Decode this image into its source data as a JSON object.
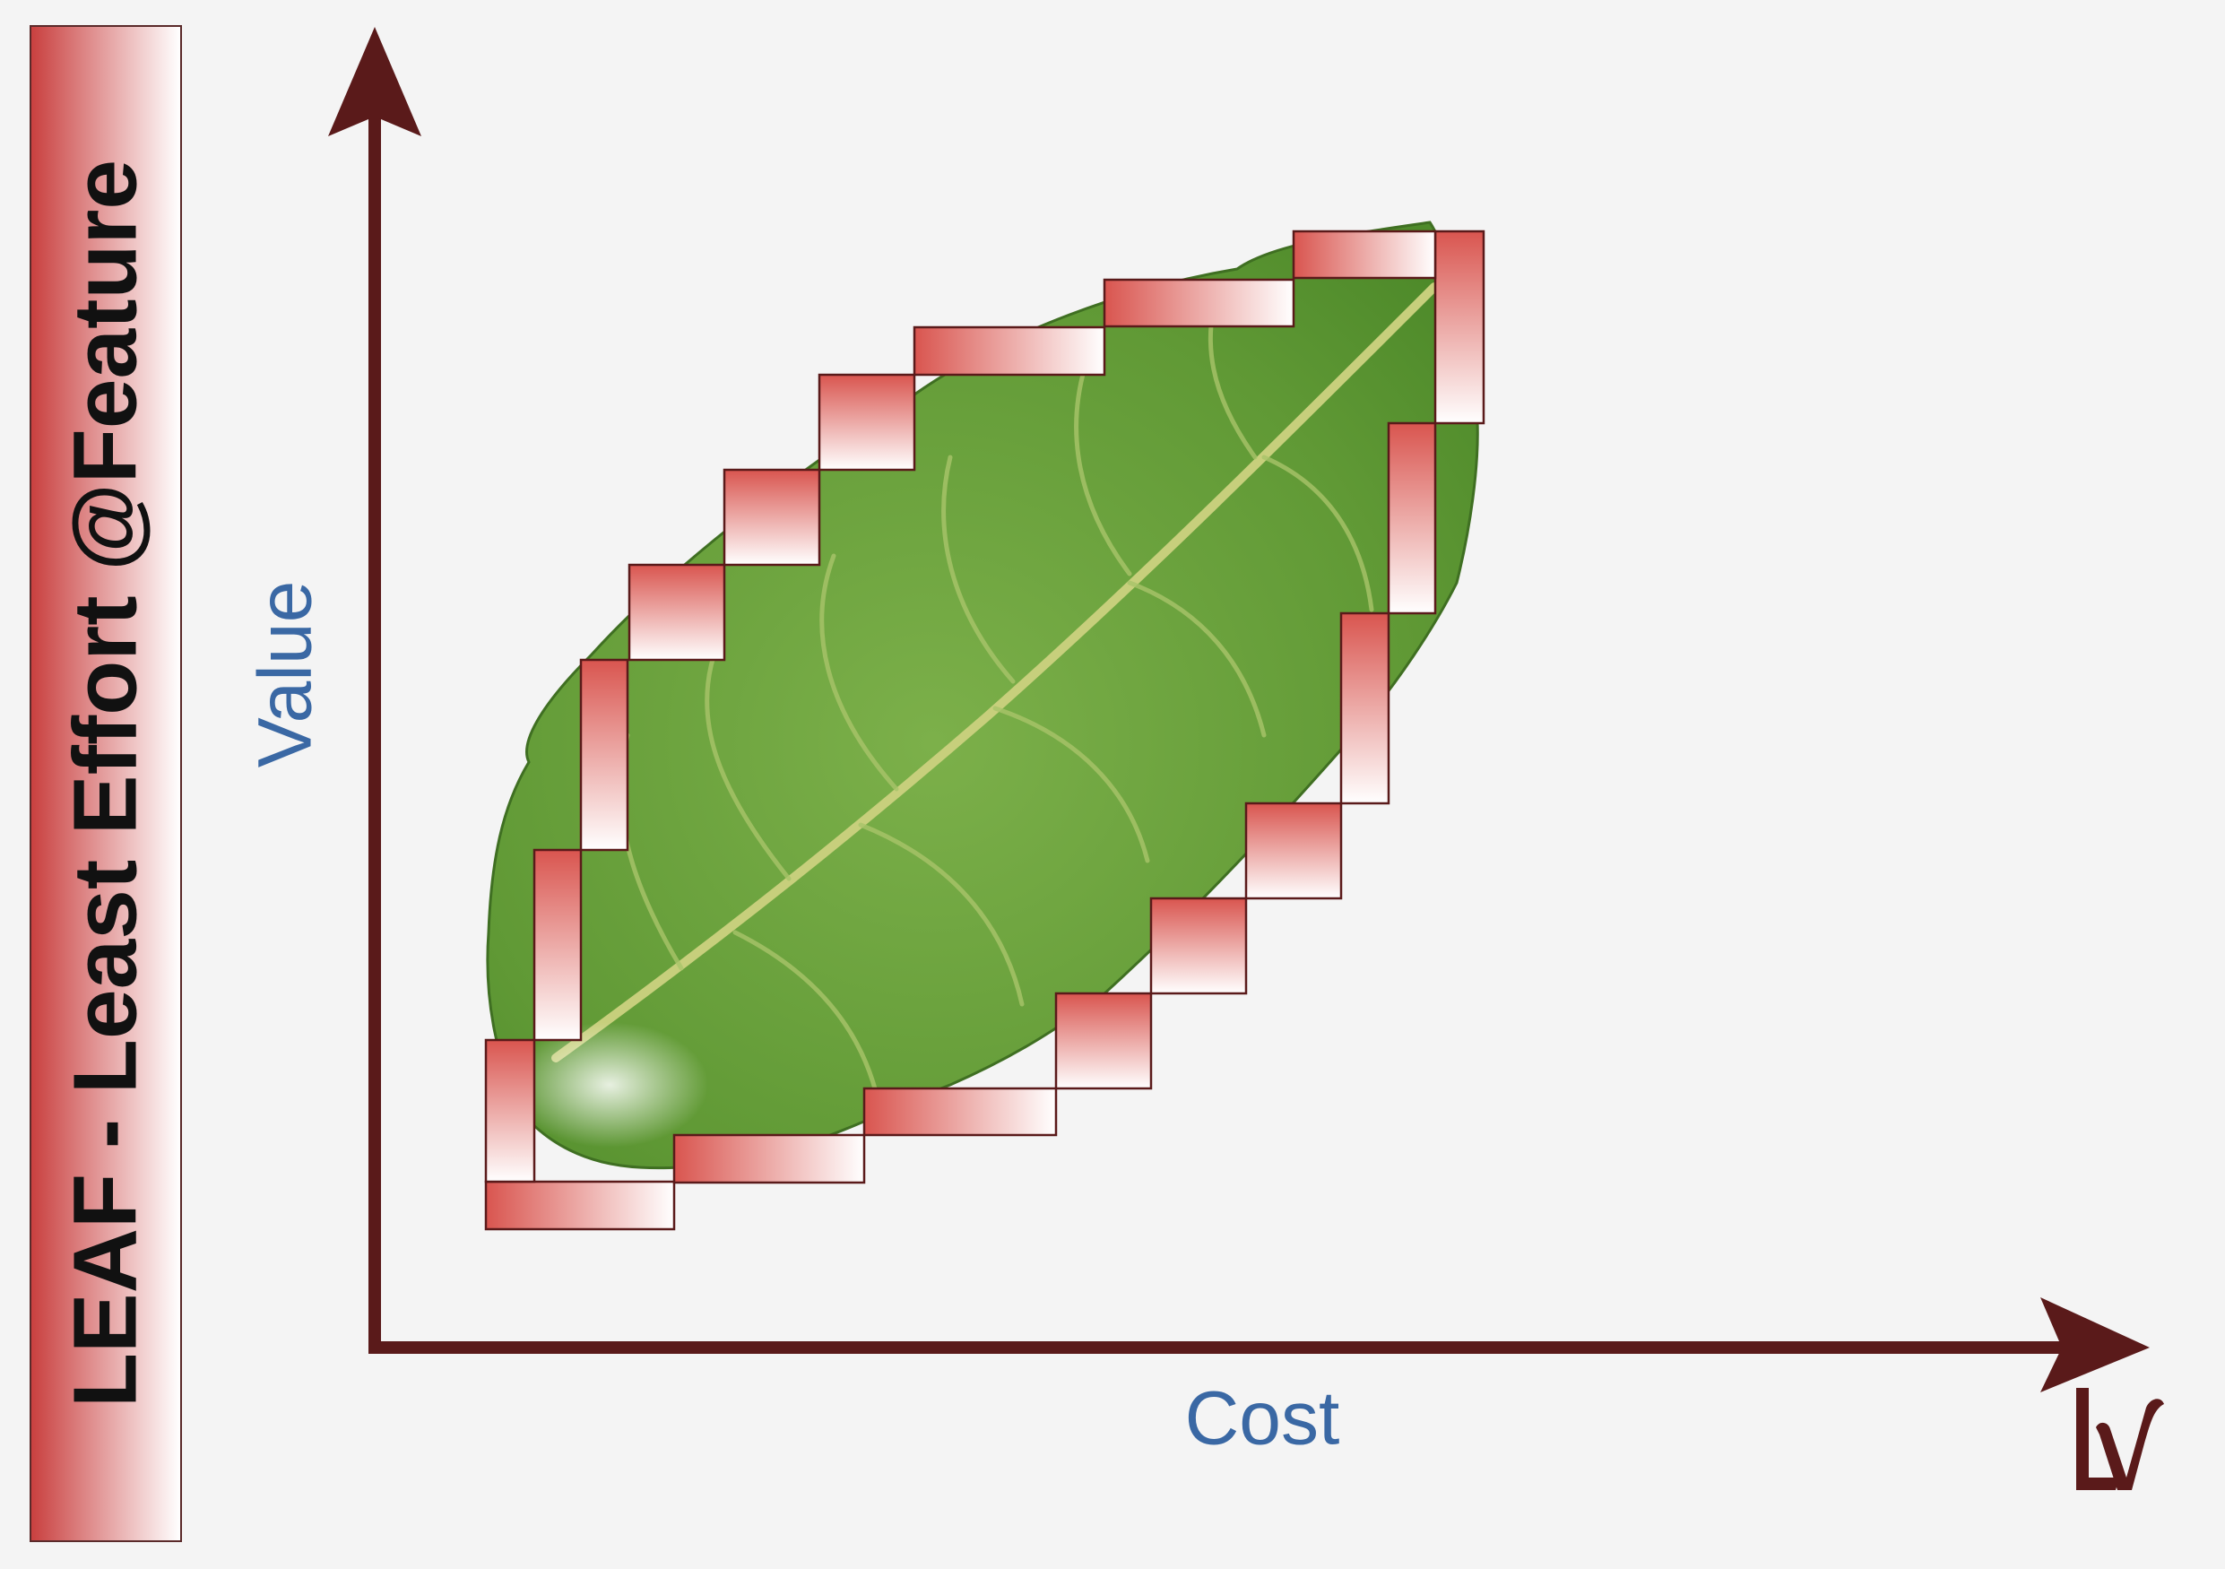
{
  "title": "LEAF - Least Effort @Feature",
  "axes": {
    "y_label": "Value",
    "x_label": "Cost"
  },
  "colors": {
    "axis": "#5a1a1a",
    "label": "#3a68a4",
    "block_top": "#d9554f",
    "block_bottom": "#ffffff",
    "leaf": "#6ea33e"
  },
  "icons": {
    "logo": "lv-monogram-logo",
    "leaf": "leaf-photo"
  }
}
